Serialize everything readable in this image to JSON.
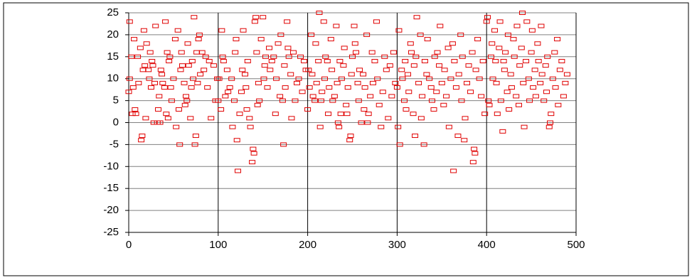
{
  "chart_data": {
    "type": "scatter",
    "color": "#e00000",
    "grid": true,
    "xlim": [
      0,
      500
    ],
    "xticks": [
      0,
      100,
      200,
      300,
      400,
      500
    ],
    "ylim": [
      -25,
      25
    ],
    "yticks": [
      -25,
      -20,
      -15,
      -10,
      -5,
      0,
      5,
      10,
      15,
      20,
      25
    ],
    "x": [
      1,
      1,
      0,
      3,
      4,
      5,
      6,
      7,
      8,
      10,
      11,
      13,
      14,
      15,
      16,
      17,
      18,
      19,
      20,
      22,
      23,
      24,
      25,
      26,
      27,
      28,
      29,
      30,
      32,
      33,
      34,
      35,
      36,
      37,
      38,
      40,
      41,
      42,
      43,
      44,
      45,
      46,
      47,
      48,
      50,
      52,
      53,
      55,
      56,
      57,
      58,
      59,
      60,
      62,
      63,
      64,
      65,
      66,
      67,
      69,
      70,
      71,
      72,
      73,
      74,
      75,
      76,
      77,
      78,
      79,
      80,
      82,
      84,
      86,
      88,
      90,
      92,
      95,
      97,
      99,
      100,
      101,
      103,
      104,
      105,
      106,
      108,
      110,
      111,
      113,
      115,
      116,
      118,
      119,
      120,
      121,
      122,
      124,
      126,
      127,
      128,
      130,
      131,
      132,
      133,
      135,
      136,
      138,
      139,
      140,
      141,
      142,
      143,
      144,
      145,
      146,
      148,
      150,
      151,
      152,
      153,
      155,
      157,
      158,
      160,
      162,
      164,
      165,
      167,
      169,
      170,
      172,
      173,
      174,
      175,
      177,
      178,
      179,
      181,
      182,
      184,
      186,
      188,
      190,
      192,
      194,
      196,
      198,
      200,
      201,
      202,
      204,
      205,
      206,
      208,
      209,
      210,
      212,
      213,
      214,
      215,
      216,
      218,
      219,
      220,
      222,
      223,
      224,
      226,
      227,
      228,
      230,
      232,
      233,
      234,
      235,
      236,
      237,
      238,
      240,
      241,
      243,
      244,
      245,
      247,
      248,
      249,
      250,
      252,
      253,
      254,
      256,
      257,
      258,
      260,
      262,
      263,
      264,
      266,
      267,
      268,
      270,
      272,
      273,
      275,
      277,
      278,
      280,
      282,
      284,
      286,
      288,
      290,
      292,
      294,
      296,
      298,
      300,
      301,
      302,
      303,
      305,
      306,
      308,
      309,
      310,
      312,
      313,
      315,
      316,
      318,
      319,
      320,
      321,
      322,
      324,
      326,
      327,
      328,
      330,
      331,
      333,
      334,
      336,
      338,
      339,
      341,
      342,
      344,
      345,
      347,
      348,
      350,
      352,
      353,
      355,
      357,
      358,
      360,
      362,
      363,
      364,
      366,
      368,
      369,
      371,
      372,
      373,
      375,
      376,
      378,
      380,
      382,
      384,
      385,
      386,
      387,
      388,
      390,
      392,
      394,
      396,
      398,
      400,
      401,
      402,
      403,
      405,
      406,
      407,
      409,
      410,
      411,
      412,
      414,
      415,
      416,
      418,
      419,
      420,
      421,
      423,
      424,
      425,
      427,
      428,
      430,
      431,
      433,
      434,
      436,
      437,
      439,
      440,
      441,
      442,
      444,
      445,
      447,
      448,
      450,
      451,
      452,
      454,
      455,
      457,
      458,
      460,
      461,
      462,
      464,
      466,
      467,
      468,
      470,
      471,
      472,
      474,
      476,
      477,
      479,
      480,
      482,
      484,
      486,
      488,
      490
    ],
    "values": [
      23,
      10,
      7,
      15,
      2,
      8,
      19,
      3,
      2,
      15,
      9,
      17,
      -4,
      -3,
      12,
      21,
      13,
      1,
      18,
      12,
      10,
      16,
      8,
      14,
      13,
      0,
      9,
      22,
      0,
      3,
      6,
      0,
      12,
      11,
      9,
      8,
      23,
      2,
      16,
      1,
      14,
      15,
      8,
      5,
      10,
      19,
      -1,
      21,
      3,
      -5,
      12,
      16,
      13,
      9,
      4,
      6,
      5,
      18,
      13,
      1,
      8,
      14,
      10,
      24,
      -5,
      -3,
      16,
      9,
      19,
      20,
      11,
      16,
      12,
      15,
      8,
      14,
      1,
      13,
      5,
      10,
      5,
      10,
      3,
      21,
      15,
      14,
      6,
      12,
      7,
      8,
      10,
      -1,
      5,
      16,
      19,
      -4,
      -11,
      2,
      7,
      12,
      21,
      11,
      8,
      3,
      14,
      1,
      -1,
      -9,
      -6,
      -7,
      23,
      24,
      16,
      4,
      9,
      5,
      19,
      24,
      10,
      13,
      15,
      8,
      17,
      12,
      14,
      15,
      2,
      10,
      18,
      6,
      20,
      5,
      -5,
      13,
      8,
      23,
      17,
      15,
      11,
      1,
      16,
      5,
      9,
      10,
      15,
      7,
      14,
      12,
      3,
      12,
      8,
      20,
      11,
      6,
      5,
      18,
      9,
      14,
      25,
      -1,
      5,
      7,
      23,
      10,
      15,
      14,
      2,
      8,
      19,
      12,
      5,
      6,
      22,
      9,
      0,
      -1,
      14,
      2,
      10,
      13,
      17,
      4,
      2,
      8,
      -4,
      -3,
      11,
      15,
      22,
      18,
      16,
      9,
      5,
      12,
      0,
      11,
      3,
      8,
      20,
      0,
      2,
      6,
      16,
      9,
      14,
      23,
      10,
      4,
      -1,
      7,
      15,
      12,
      1,
      13,
      6,
      16,
      9,
      8,
      -1,
      21,
      -5,
      12,
      10,
      5,
      14,
      3,
      11,
      7,
      18,
      16,
      2,
      13,
      -3,
      15,
      24,
      9,
      20,
      1,
      6,
      -5,
      14,
      11,
      19,
      10,
      8,
      5,
      3,
      15,
      7,
      16,
      13,
      22,
      9,
      4,
      12,
      6,
      17,
      -1,
      10,
      18,
      -11,
      14,
      8,
      -3,
      11,
      20,
      5,
      15,
      -4,
      1,
      9,
      13,
      7,
      16,
      -9,
      -6,
      -7,
      12,
      19,
      10,
      6,
      14,
      2,
      23,
      24,
      5,
      4,
      15,
      18,
      10,
      21,
      14,
      9,
      2,
      17,
      23,
      5,
      -2,
      14,
      12,
      16,
      7,
      20,
      3,
      11,
      8,
      19,
      15,
      6,
      22,
      4,
      13,
      17,
      25,
      9,
      -1,
      14,
      23,
      10,
      5,
      16,
      21,
      8,
      12,
      6,
      18,
      14,
      9,
      22,
      11,
      5,
      13,
      7,
      15,
      -1,
      0,
      2,
      10,
      16,
      8,
      19,
      4,
      12,
      14,
      6,
      9,
      11
    ]
  }
}
